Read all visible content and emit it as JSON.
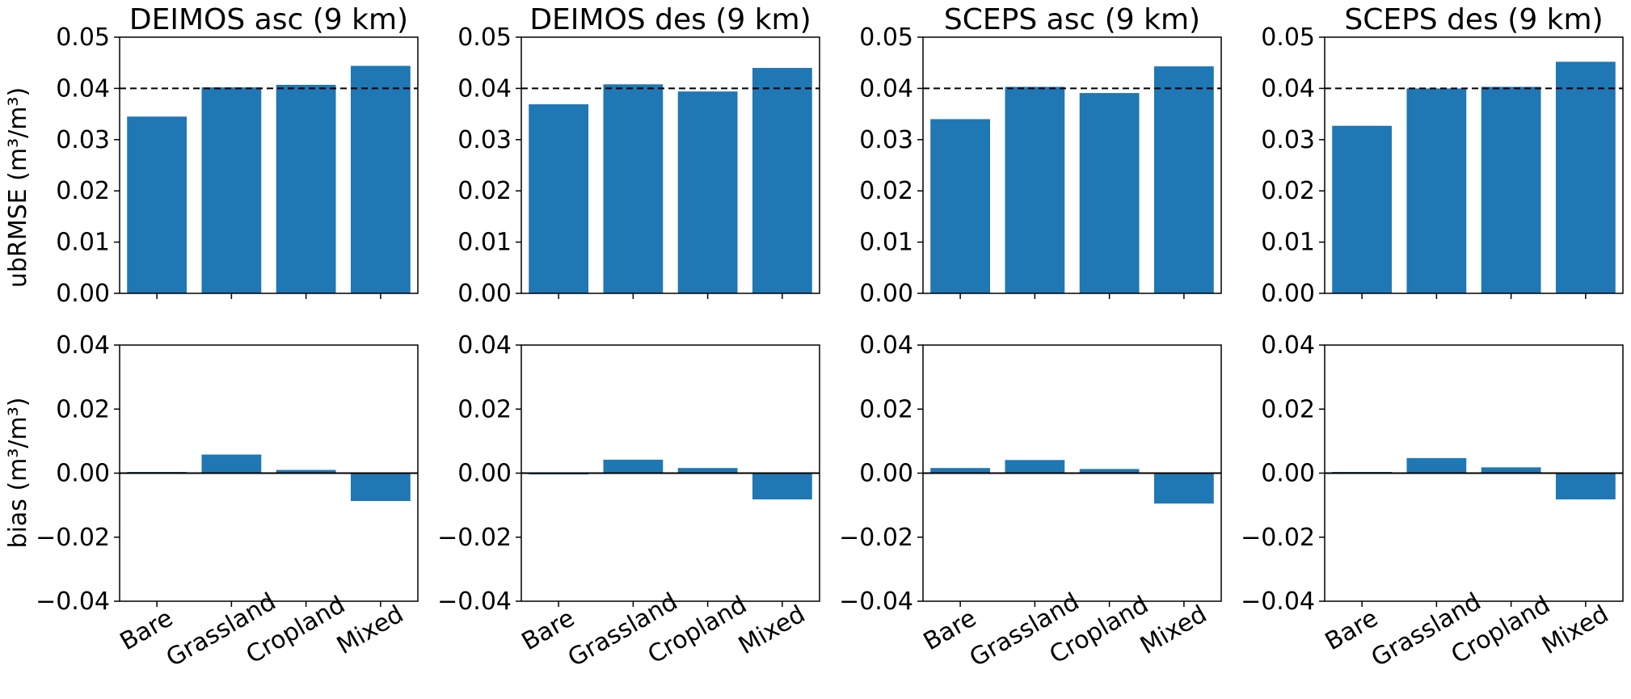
{
  "colors": {
    "bar": "#1f77b4",
    "axis": "#000000",
    "reference": "#000000"
  },
  "row_labels": {
    "top": "ubRMSE (m³/m³)",
    "bottom": "bias (m³/m³)"
  },
  "chart_data": [
    {
      "type": "bar",
      "title": "DEIMOS asc (9 km)",
      "ylabel": "ubRMSE (m³/m³)",
      "categories": [
        "Bare",
        "Grassland",
        "Cropland",
        "Mixed"
      ],
      "values": [
        0.0345,
        0.0402,
        0.0407,
        0.0444
      ],
      "ylim": [
        0,
        0.05
      ],
      "yticks": [
        0.0,
        0.01,
        0.02,
        0.03,
        0.04,
        0.05
      ],
      "ytick_labels": [
        "0.00",
        "0.01",
        "0.02",
        "0.03",
        "0.04",
        "0.05"
      ],
      "reference_line": {
        "y": 0.04,
        "style": "dashed"
      },
      "show_xtick_labels": false,
      "grid": false
    },
    {
      "type": "bar",
      "title": "DEIMOS des (9 km)",
      "ylabel": "",
      "categories": [
        "Bare",
        "Grassland",
        "Cropland",
        "Mixed"
      ],
      "values": [
        0.0369,
        0.0408,
        0.0394,
        0.044
      ],
      "ylim": [
        0,
        0.05
      ],
      "yticks": [
        0.0,
        0.01,
        0.02,
        0.03,
        0.04,
        0.05
      ],
      "ytick_labels": [
        "0.00",
        "0.01",
        "0.02",
        "0.03",
        "0.04",
        "0.05"
      ],
      "reference_line": {
        "y": 0.04,
        "style": "dashed"
      },
      "show_xtick_labels": false,
      "grid": false
    },
    {
      "type": "bar",
      "title": "SCEPS asc (9 km)",
      "ylabel": "",
      "categories": [
        "Bare",
        "Grassland",
        "Cropland",
        "Mixed"
      ],
      "values": [
        0.034,
        0.0403,
        0.0391,
        0.0443
      ],
      "ylim": [
        0,
        0.05
      ],
      "yticks": [
        0.0,
        0.01,
        0.02,
        0.03,
        0.04,
        0.05
      ],
      "ytick_labels": [
        "0.00",
        "0.01",
        "0.02",
        "0.03",
        "0.04",
        "0.05"
      ],
      "reference_line": {
        "y": 0.04,
        "style": "dashed"
      },
      "show_xtick_labels": false,
      "grid": false
    },
    {
      "type": "bar",
      "title": "SCEPS des (9 km)",
      "ylabel": "",
      "categories": [
        "Bare",
        "Grassland",
        "Cropland",
        "Mixed"
      ],
      "values": [
        0.0327,
        0.04,
        0.0403,
        0.0452
      ],
      "ylim": [
        0,
        0.05
      ],
      "yticks": [
        0.0,
        0.01,
        0.02,
        0.03,
        0.04,
        0.05
      ],
      "ytick_labels": [
        "0.00",
        "0.01",
        "0.02",
        "0.03",
        "0.04",
        "0.05"
      ],
      "reference_line": {
        "y": 0.04,
        "style": "dashed"
      },
      "show_xtick_labels": false,
      "grid": false
    },
    {
      "type": "bar",
      "title": "",
      "ylabel": "bias (m³/m³)",
      "categories": [
        "Bare",
        "Grassland",
        "Cropland",
        "Mixed"
      ],
      "values": [
        0.0,
        0.0058,
        0.001,
        -0.0087
      ],
      "ylim": [
        -0.04,
        0.04
      ],
      "yticks": [
        -0.04,
        -0.02,
        0.0,
        0.02,
        0.04
      ],
      "ytick_labels": [
        "−0.04",
        "−0.02",
        "0.00",
        "0.02",
        "0.04"
      ],
      "reference_line": {
        "y": 0.0,
        "style": "solid"
      },
      "show_xtick_labels": true,
      "grid": false
    },
    {
      "type": "bar",
      "title": "",
      "ylabel": "",
      "categories": [
        "Bare",
        "Grassland",
        "Cropland",
        "Mixed"
      ],
      "values": [
        -0.0004,
        0.0042,
        0.0016,
        -0.0082
      ],
      "ylim": [
        -0.04,
        0.04
      ],
      "yticks": [
        -0.04,
        -0.02,
        0.0,
        0.02,
        0.04
      ],
      "ytick_labels": [
        "−0.04",
        "−0.02",
        "0.00",
        "0.02",
        "0.04"
      ],
      "reference_line": {
        "y": 0.0,
        "style": "solid"
      },
      "show_xtick_labels": true,
      "grid": false
    },
    {
      "type": "bar",
      "title": "",
      "ylabel": "",
      "categories": [
        "Bare",
        "Grassland",
        "Cropland",
        "Mixed"
      ],
      "values": [
        0.0016,
        0.0041,
        0.0013,
        -0.0095
      ],
      "ylim": [
        -0.04,
        0.04
      ],
      "yticks": [
        -0.04,
        -0.02,
        0.0,
        0.02,
        0.04
      ],
      "ytick_labels": [
        "−0.04",
        "−0.02",
        "0.00",
        "0.02",
        "0.04"
      ],
      "reference_line": {
        "y": 0.0,
        "style": "solid"
      },
      "show_xtick_labels": true,
      "grid": false
    },
    {
      "type": "bar",
      "title": "",
      "ylabel": "",
      "categories": [
        "Bare",
        "Grassland",
        "Cropland",
        "Mixed"
      ],
      "values": [
        0.0,
        0.0047,
        0.0018,
        -0.0082
      ],
      "ylim": [
        -0.04,
        0.04
      ],
      "yticks": [
        -0.04,
        -0.02,
        0.0,
        0.02,
        0.04
      ],
      "ytick_labels": [
        "−0.04",
        "−0.02",
        "0.00",
        "0.02",
        "0.04"
      ],
      "reference_line": {
        "y": 0.0,
        "style": "solid"
      },
      "show_xtick_labels": true,
      "grid": false
    }
  ]
}
